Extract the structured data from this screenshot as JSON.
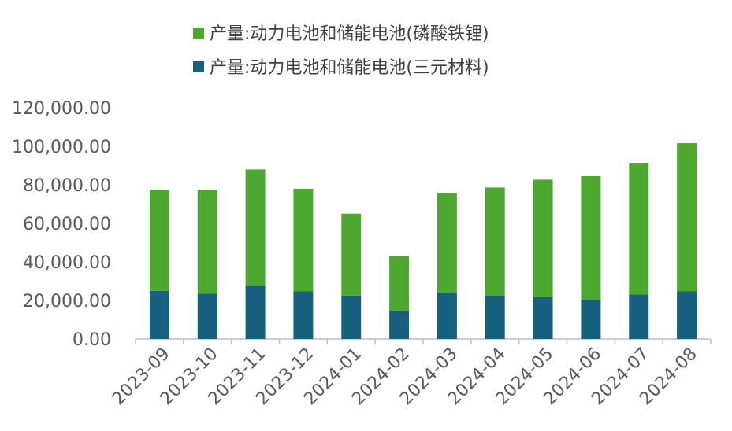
{
  "chart_data": {
    "type": "bar",
    "stacked": true,
    "title": "",
    "xlabel": "",
    "ylabel": "",
    "categories": [
      "2023-09",
      "2023-10",
      "2023-11",
      "2023-12",
      "2024-01",
      "2024-02",
      "2024-03",
      "2024-04",
      "2024-05",
      "2024-06",
      "2024-07",
      "2024-08"
    ],
    "series": [
      {
        "name": "产量:动力电池和储能电池(三元材料)",
        "color": "#17607f",
        "values": [
          25000,
          23500,
          27500,
          24700,
          22500,
          14500,
          23900,
          22600,
          21900,
          20200,
          23100,
          24700
        ]
      },
      {
        "name": "产量:动力电池和储能电池(磷酸铁锂)",
        "color": "#4ea72e",
        "values": [
          52500,
          54000,
          60500,
          53300,
          42500,
          28500,
          51800,
          56000,
          60800,
          64300,
          68300,
          76900
        ]
      }
    ],
    "legend_order": [
      1,
      0
    ],
    "legend_position": "top",
    "ylim": [
      0,
      120000
    ],
    "yticks": [
      "0.00",
      "20,000.00",
      "40,000.00",
      "60,000.00",
      "80,000.00",
      "100,000.00",
      "120,000.00"
    ],
    "grid": false
  }
}
